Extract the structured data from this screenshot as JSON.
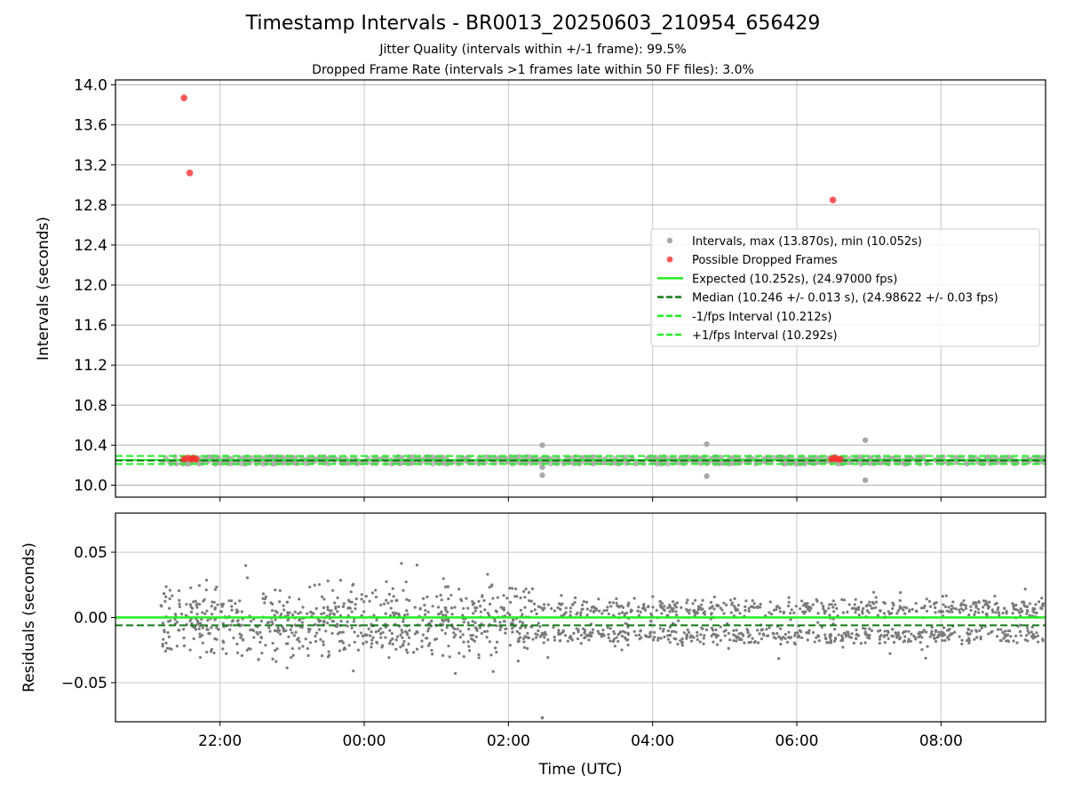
{
  "chart_data": {
    "type": "scatter",
    "title": "Timestamp Intervals - BR0013_20250603_210954_656429",
    "subtitle_lines": [
      "Jitter Quality (intervals within +/-1 frame): 99.5%",
      "Dropped Frame Rate (intervals >1 frames late within 50 FF files): 3.0%"
    ],
    "xlabel": "Time (UTC)",
    "x_unit": "hours since 00:00 UTC (negative = previous day)",
    "x_ticks": [
      {
        "value": -2,
        "label": "22:00"
      },
      {
        "value": 0,
        "label": "00:00"
      },
      {
        "value": 2,
        "label": "02:00"
      },
      {
        "value": 4,
        "label": "04:00"
      },
      {
        "value": 6,
        "label": "06:00"
      },
      {
        "value": 8,
        "label": "08:00"
      }
    ],
    "xlim": [
      -3.45,
      9.45
    ],
    "x_data_range": [
      -2.82,
      9.42
    ],
    "grid": true,
    "legend_position": "center-right",
    "colors": {
      "intervals": "#a9a9a9",
      "dropped": "#ff3030",
      "expected": "#22ee22",
      "median": "#127a12",
      "plusminus": "#22ee22",
      "residuals": "#7a7a7a"
    },
    "top_panel": {
      "ylabel": "Intervals (seconds)",
      "ylim": [
        9.88,
        14.05
      ],
      "y_ticks": [
        "10.0",
        "10.4",
        "10.8",
        "11.2",
        "11.6",
        "12.0",
        "12.4",
        "12.8",
        "13.2",
        "13.6",
        "14.0"
      ],
      "y_tick_values": [
        10.0,
        10.4,
        10.8,
        11.2,
        11.6,
        12.0,
        12.4,
        12.8,
        13.2,
        13.6,
        14.0
      ],
      "expected": 10.252,
      "median": 10.246,
      "minus_interval": 10.212,
      "plus_interval": 10.292,
      "intervals_band": [
        10.21,
        10.285
      ],
      "interval_outliers": [
        {
          "x": 2.47,
          "y": 10.4
        },
        {
          "x": 2.47,
          "y": 10.1
        },
        {
          "x": 2.47,
          "y": 10.18
        },
        {
          "x": 4.75,
          "y": 10.41
        },
        {
          "x": 4.75,
          "y": 10.09
        },
        {
          "x": 6.95,
          "y": 10.45
        },
        {
          "x": 6.95,
          "y": 10.05
        }
      ],
      "dropped_frames": [
        {
          "x": -2.5,
          "y": 13.87
        },
        {
          "x": -2.42,
          "y": 13.12
        },
        {
          "x": 6.5,
          "y": 12.85
        },
        {
          "x": -2.5,
          "y": 10.26
        },
        {
          "x": -2.45,
          "y": 10.27
        },
        {
          "x": -2.4,
          "y": 10.26
        },
        {
          "x": -2.37,
          "y": 10.27
        },
        {
          "x": -2.33,
          "y": 10.26
        },
        {
          "x": 6.48,
          "y": 10.26
        },
        {
          "x": 6.52,
          "y": 10.27
        },
        {
          "x": 6.56,
          "y": 10.26
        },
        {
          "x": 6.6,
          "y": 10.26
        }
      ],
      "legend": [
        {
          "label": "Intervals, max (13.870s), min (10.052s)",
          "marker": "point-gray"
        },
        {
          "label": "Possible Dropped Frames",
          "marker": "point-red"
        },
        {
          "label": "Expected (10.252s), (24.97000 fps)",
          "marker": "line-solid-green"
        },
        {
          "label": "Median (10.246 +/- 0.013 s), (24.98622 +/- 0.03 fps)",
          "marker": "line-dashed-darkgreen"
        },
        {
          "label": "-1/fps Interval (10.212s)",
          "marker": "line-dashed-green"
        },
        {
          "label": "+1/fps Interval (10.292s)",
          "marker": "line-dashed-green"
        }
      ]
    },
    "bottom_panel": {
      "ylabel": "Residuals (seconds)",
      "ylim": [
        -0.08,
        0.08
      ],
      "y_ticks": [
        "0.05",
        "0.00",
        "−0.05"
      ],
      "y_tick_values": [
        0.05,
        0.0,
        -0.05
      ],
      "expected_residual": 0.0,
      "median_residual": -0.006,
      "residual_spread_before_0230": [
        -0.045,
        0.04
      ],
      "residual_clusters_after_0230": [
        0.007,
        -0.014
      ],
      "residual_outlier": {
        "x": 2.47,
        "y": -0.077
      }
    }
  }
}
